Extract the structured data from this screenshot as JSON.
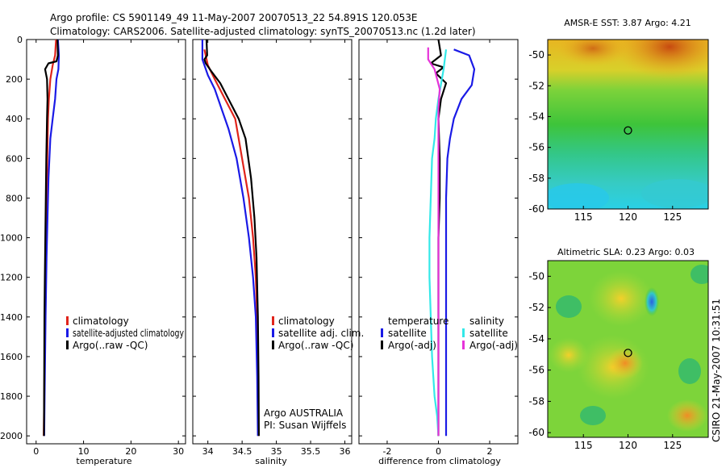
{
  "title": {
    "line1": "Argo profile: CS 5901149_49 11-May-2007 20070513_22 54.891S 120.053E",
    "line2": "Climatology: CARS2006. Satellite-adjusted climatology: synTS_20070513.nc (1.2d later)"
  },
  "colors": {
    "climatology": "#e0241b",
    "satellite": "#1a1ae6",
    "argo": "#000000",
    "satellite_salinity": "#33e8e8",
    "argo_salinity_adj": "#e633d9"
  },
  "chart_data": [
    {
      "type": "line",
      "name": "temperature-profile",
      "xlabel": "temperature",
      "ylabel": "",
      "xlim": [
        -2,
        31.5
      ],
      "ylim": [
        2040,
        0
      ],
      "xticks": [
        0,
        10,
        20,
        30
      ],
      "yticks": [
        0,
        200,
        400,
        600,
        800,
        1000,
        1200,
        1400,
        1600,
        1800,
        2000
      ],
      "legend": [
        "climatology",
        "satellite-adjusted climatology",
        "Argo(..raw -QC)"
      ],
      "legend_position": "lower-right",
      "series": [
        {
          "name": "climatology",
          "color": "climatology",
          "x": [
            4.2,
            4.0,
            3.5,
            3.0,
            2.7,
            2.5,
            2.35,
            2.25,
            2.1,
            2.0,
            1.9,
            1.8,
            1.7,
            1.6
          ],
          "y": [
            0,
            80,
            130,
            200,
            300,
            400,
            600,
            800,
            1000,
            1200,
            1400,
            1600,
            1800,
            2000
          ]
        },
        {
          "name": "satellite-adjusted climatology",
          "color": "satellite",
          "x": [
            4.6,
            4.8,
            4.7,
            4.3,
            4.0,
            3.5,
            3.0,
            2.6,
            2.4,
            2.2,
            2.0,
            1.9,
            1.8,
            1.7
          ],
          "y": [
            0,
            80,
            150,
            200,
            300,
            400,
            500,
            700,
            900,
            1100,
            1400,
            1600,
            1800,
            2000
          ]
        },
        {
          "name": "Argo(..raw -QC)",
          "color": "argo",
          "x": [
            4.5,
            4.6,
            4.3,
            2.6,
            1.9,
            2.3,
            2.4,
            2.3,
            2.15,
            2.05,
            1.95,
            1.85,
            1.75,
            1.7,
            1.65
          ],
          "y": [
            0,
            80,
            110,
            120,
            150,
            200,
            300,
            400,
            600,
            800,
            1000,
            1200,
            1400,
            1700,
            2000
          ]
        }
      ]
    },
    {
      "type": "line",
      "name": "salinity-profile",
      "xlabel": "salinity",
      "xlim": [
        33.78,
        36.1
      ],
      "ylim": [
        2040,
        0
      ],
      "xticks": [
        34,
        34.5,
        35,
        35.5,
        36
      ],
      "legend": [
        "climatology",
        "satellite adj. clim.",
        "Argo(..raw -QC)"
      ],
      "legend_position": "lower-right",
      "annotation": [
        "Argo AUSTRALIA",
        "PI: Susan Wijffels"
      ],
      "series": [
        {
          "name": "climatology",
          "color": "climatology",
          "x": [
            33.95,
            34.0,
            34.1,
            34.25,
            34.4,
            34.5,
            34.6,
            34.66,
            34.7,
            34.72,
            34.73,
            34.74
          ],
          "y": [
            50,
            130,
            200,
            300,
            400,
            600,
            800,
            1000,
            1200,
            1400,
            1700,
            2000
          ]
        },
        {
          "name": "satellite adj. clim.",
          "color": "satellite",
          "x": [
            33.92,
            33.92,
            34.0,
            34.1,
            34.2,
            34.3,
            34.42,
            34.52,
            34.6,
            34.66,
            34.7,
            34.72,
            34.73
          ],
          "y": [
            0,
            100,
            180,
            250,
            350,
            450,
            600,
            800,
            1000,
            1200,
            1400,
            1700,
            2000
          ]
        },
        {
          "name": "Argo(..raw -QC)",
          "color": "argo",
          "x": [
            33.98,
            33.99,
            33.95,
            33.97,
            34.05,
            34.18,
            34.3,
            34.45,
            34.55,
            34.63,
            34.68,
            34.71,
            34.73,
            34.74,
            34.745
          ],
          "y": [
            0,
            80,
            100,
            120,
            160,
            220,
            300,
            400,
            500,
            700,
            900,
            1100,
            1400,
            1700,
            2000
          ]
        }
      ]
    },
    {
      "type": "line",
      "name": "difference-profile",
      "xlabel": "difference from climatology",
      "xlim": [
        -3.1,
        3.1
      ],
      "ylim": [
        2040,
        0
      ],
      "xticks": [
        -2,
        0,
        2
      ],
      "legend_groups": [
        {
          "title": "temperature",
          "items": [
            "satellite",
            "Argo(-adj)"
          ]
        },
        {
          "title": "salinity",
          "items": [
            "satellite",
            "Argo(-adj)"
          ]
        }
      ],
      "legend_position": "lower",
      "series": [
        {
          "name": "temperature satellite",
          "color": "satellite",
          "x": [
            0.6,
            1.2,
            1.4,
            1.3,
            0.9,
            0.6,
            0.45,
            0.35,
            0.3,
            0.3,
            0.3,
            0.3,
            0.3,
            0.3
          ],
          "y": [
            50,
            80,
            150,
            230,
            300,
            400,
            500,
            600,
            800,
            1000,
            1200,
            1500,
            1800,
            2000
          ]
        },
        {
          "name": "temperature Argo(-adj)",
          "color": "argo",
          "x": [
            0.0,
            0.1,
            -0.3,
            0.2,
            -0.1,
            0.3,
            0.1,
            0.0,
            0.05,
            0.05,
            0.0,
            0.0,
            0.0,
            0.0
          ],
          "y": [
            0,
            80,
            120,
            140,
            170,
            220,
            300,
            400,
            600,
            800,
            1000,
            1400,
            1700,
            2000
          ]
        },
        {
          "name": "salinity satellite",
          "color": "satellite_salinity",
          "x": [
            0.3,
            0.2,
            0.0,
            -0.1,
            -0.15,
            -0.25,
            -0.3,
            -0.35,
            -0.35,
            -0.3,
            -0.25,
            -0.15,
            -0.05,
            0.0
          ],
          "y": [
            50,
            150,
            300,
            400,
            500,
            600,
            800,
            1000,
            1200,
            1400,
            1600,
            1800,
            1900,
            2000
          ]
        },
        {
          "name": "salinity Argo(-adj)",
          "color": "argo_salinity_adj",
          "x": [
            -0.4,
            -0.4,
            -0.15,
            0.05,
            0.0,
            0.0,
            0.0,
            0.0,
            0.0,
            0.0
          ],
          "y": [
            40,
            100,
            150,
            250,
            350,
            500,
            800,
            1200,
            1600,
            2000
          ]
        }
      ]
    },
    {
      "type": "heatmap",
      "name": "amsr-sst-map",
      "title": "AMSR-E SST: 3.87 Argo: 4.21",
      "xlim": [
        111,
        129
      ],
      "ylim": [
        -60,
        -49
      ],
      "xticks": [
        115,
        120,
        125
      ],
      "yticks": [
        -50,
        -52,
        -54,
        -56,
        -58,
        -60
      ],
      "marker": {
        "x": 120,
        "y": -54.9
      },
      "description_colors": [
        "cyan",
        "green",
        "yellow",
        "orange"
      ]
    },
    {
      "type": "heatmap",
      "name": "altimetric-sla-map",
      "title": "Altimetric SLA: 0.23 Argo: 0.03",
      "xlim": [
        111,
        129
      ],
      "ylim": [
        -60.3,
        -49
      ],
      "xticks": [
        115,
        120,
        125
      ],
      "yticks": [
        -50,
        -52,
        -54,
        -56,
        -58,
        -60
      ],
      "marker": {
        "x": 120,
        "y": -54.9
      },
      "description_colors": [
        "cyan",
        "green",
        "yellow",
        "orange"
      ]
    }
  ],
  "footer_vertical": "CSIRO 21-May-2007 10:31:51"
}
